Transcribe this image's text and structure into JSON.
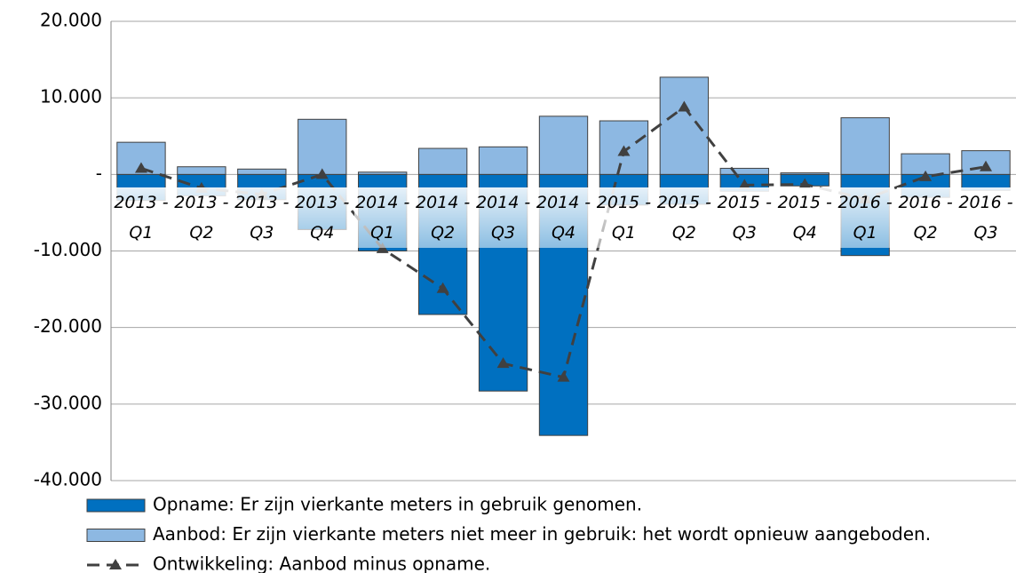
{
  "chart_data": {
    "type": "bar",
    "categories": [
      "2013 - Q1",
      "2013 - Q2",
      "2013 - Q3",
      "2013 - Q4",
      "2014 - Q1",
      "2014 - Q2",
      "2014 - Q3",
      "2014 - Q4",
      "2015 - Q1",
      "2015 - Q2",
      "2015 - Q3",
      "2015 - Q4",
      "2016 - Q1",
      "2016 - Q2",
      "2016 - Q3"
    ],
    "ylim": [
      -40000,
      20000
    ],
    "yticks": [
      {
        "value": -40000,
        "label": "-40.000"
      },
      {
        "value": -30000,
        "label": "-30.000"
      },
      {
        "value": -20000,
        "label": "-20.000"
      },
      {
        "value": -10000,
        "label": "-10.000"
      },
      {
        "value": 0,
        "label": "-"
      },
      {
        "value": 10000,
        "label": "10.000"
      },
      {
        "value": 20000,
        "label": "20.000"
      }
    ],
    "grid": true,
    "series": [
      {
        "name": "Opname: Er zijn vierkante meters in gebruik genomen.",
        "type": "bar",
        "color": "#0070c0",
        "values": [
          -3400,
          -2800,
          -3300,
          -7200,
          -10000,
          -18300,
          -28300,
          -34100,
          -4000,
          -3900,
          -2200,
          -1500,
          -10600,
          -3000,
          -2100
        ]
      },
      {
        "name": "Aanbod: Er zijn vierkante meters niet meer in gebruik: het wordt opnieuw aangeboden.",
        "type": "bar",
        "color": "#8db8e2",
        "values": [
          4200,
          1000,
          700,
          7200,
          300,
          3400,
          3600,
          7600,
          7000,
          12700,
          800,
          200,
          7400,
          2700,
          3100
        ]
      },
      {
        "name": "Ontwikkeling: Aanbod minus opname.",
        "type": "line",
        "color": "#404040",
        "values": [
          800,
          -1800,
          -2600,
          0,
          -9700,
          -14900,
          -24700,
          -26500,
          3000,
          8800,
          -1400,
          -1300,
          -3200,
          -300,
          1000
        ]
      }
    ]
  }
}
